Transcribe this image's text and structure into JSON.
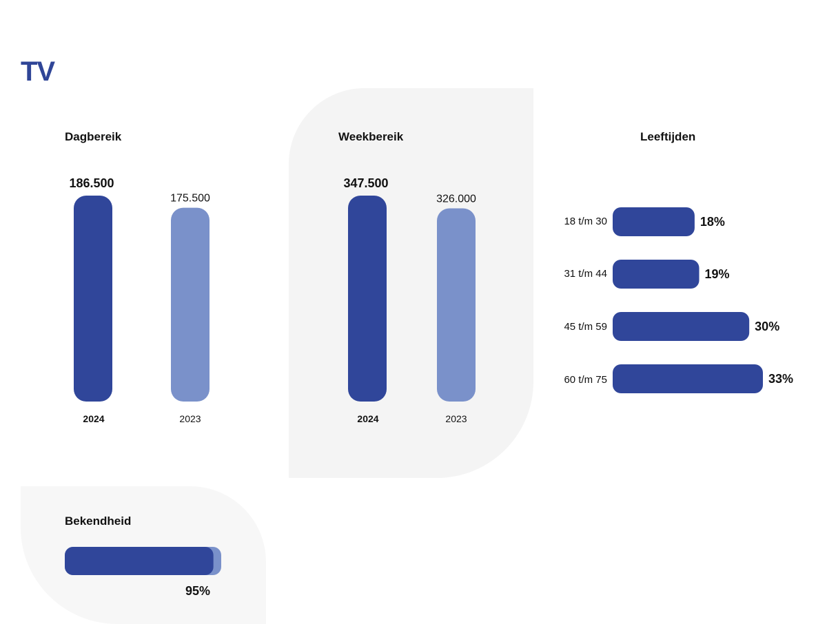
{
  "title": "TV",
  "colors": {
    "primary": "#30469a",
    "secondary": "#7a91ca",
    "panel": "#f4f4f4"
  },
  "chart_data": [
    {
      "type": "bar",
      "title": "Dagbereik",
      "categories": [
        "2024",
        "2023"
      ],
      "values": [
        186500,
        175500
      ],
      "value_labels": [
        "186.500",
        "175.500"
      ],
      "ylim": [
        0,
        186500
      ]
    },
    {
      "type": "bar",
      "title": "Weekbereik",
      "categories": [
        "2024",
        "2023"
      ],
      "values": [
        347500,
        326000
      ],
      "value_labels": [
        "347.500",
        "326.000"
      ],
      "ylim": [
        0,
        347500
      ]
    },
    {
      "type": "bar",
      "orientation": "horizontal",
      "title": "Leeftijden",
      "categories": [
        "18 t/m 30",
        "31 t/m 44",
        "45 t/m 59",
        "60 t/m 75"
      ],
      "values": [
        18,
        19,
        30,
        33
      ],
      "value_labels": [
        "18%",
        "19%",
        "30%",
        "33%"
      ]
    },
    {
      "type": "bar",
      "orientation": "horizontal",
      "title": "Bekendheid",
      "values": [
        95
      ],
      "value_labels": [
        "95%"
      ],
      "xlim": [
        0,
        100
      ]
    }
  ]
}
